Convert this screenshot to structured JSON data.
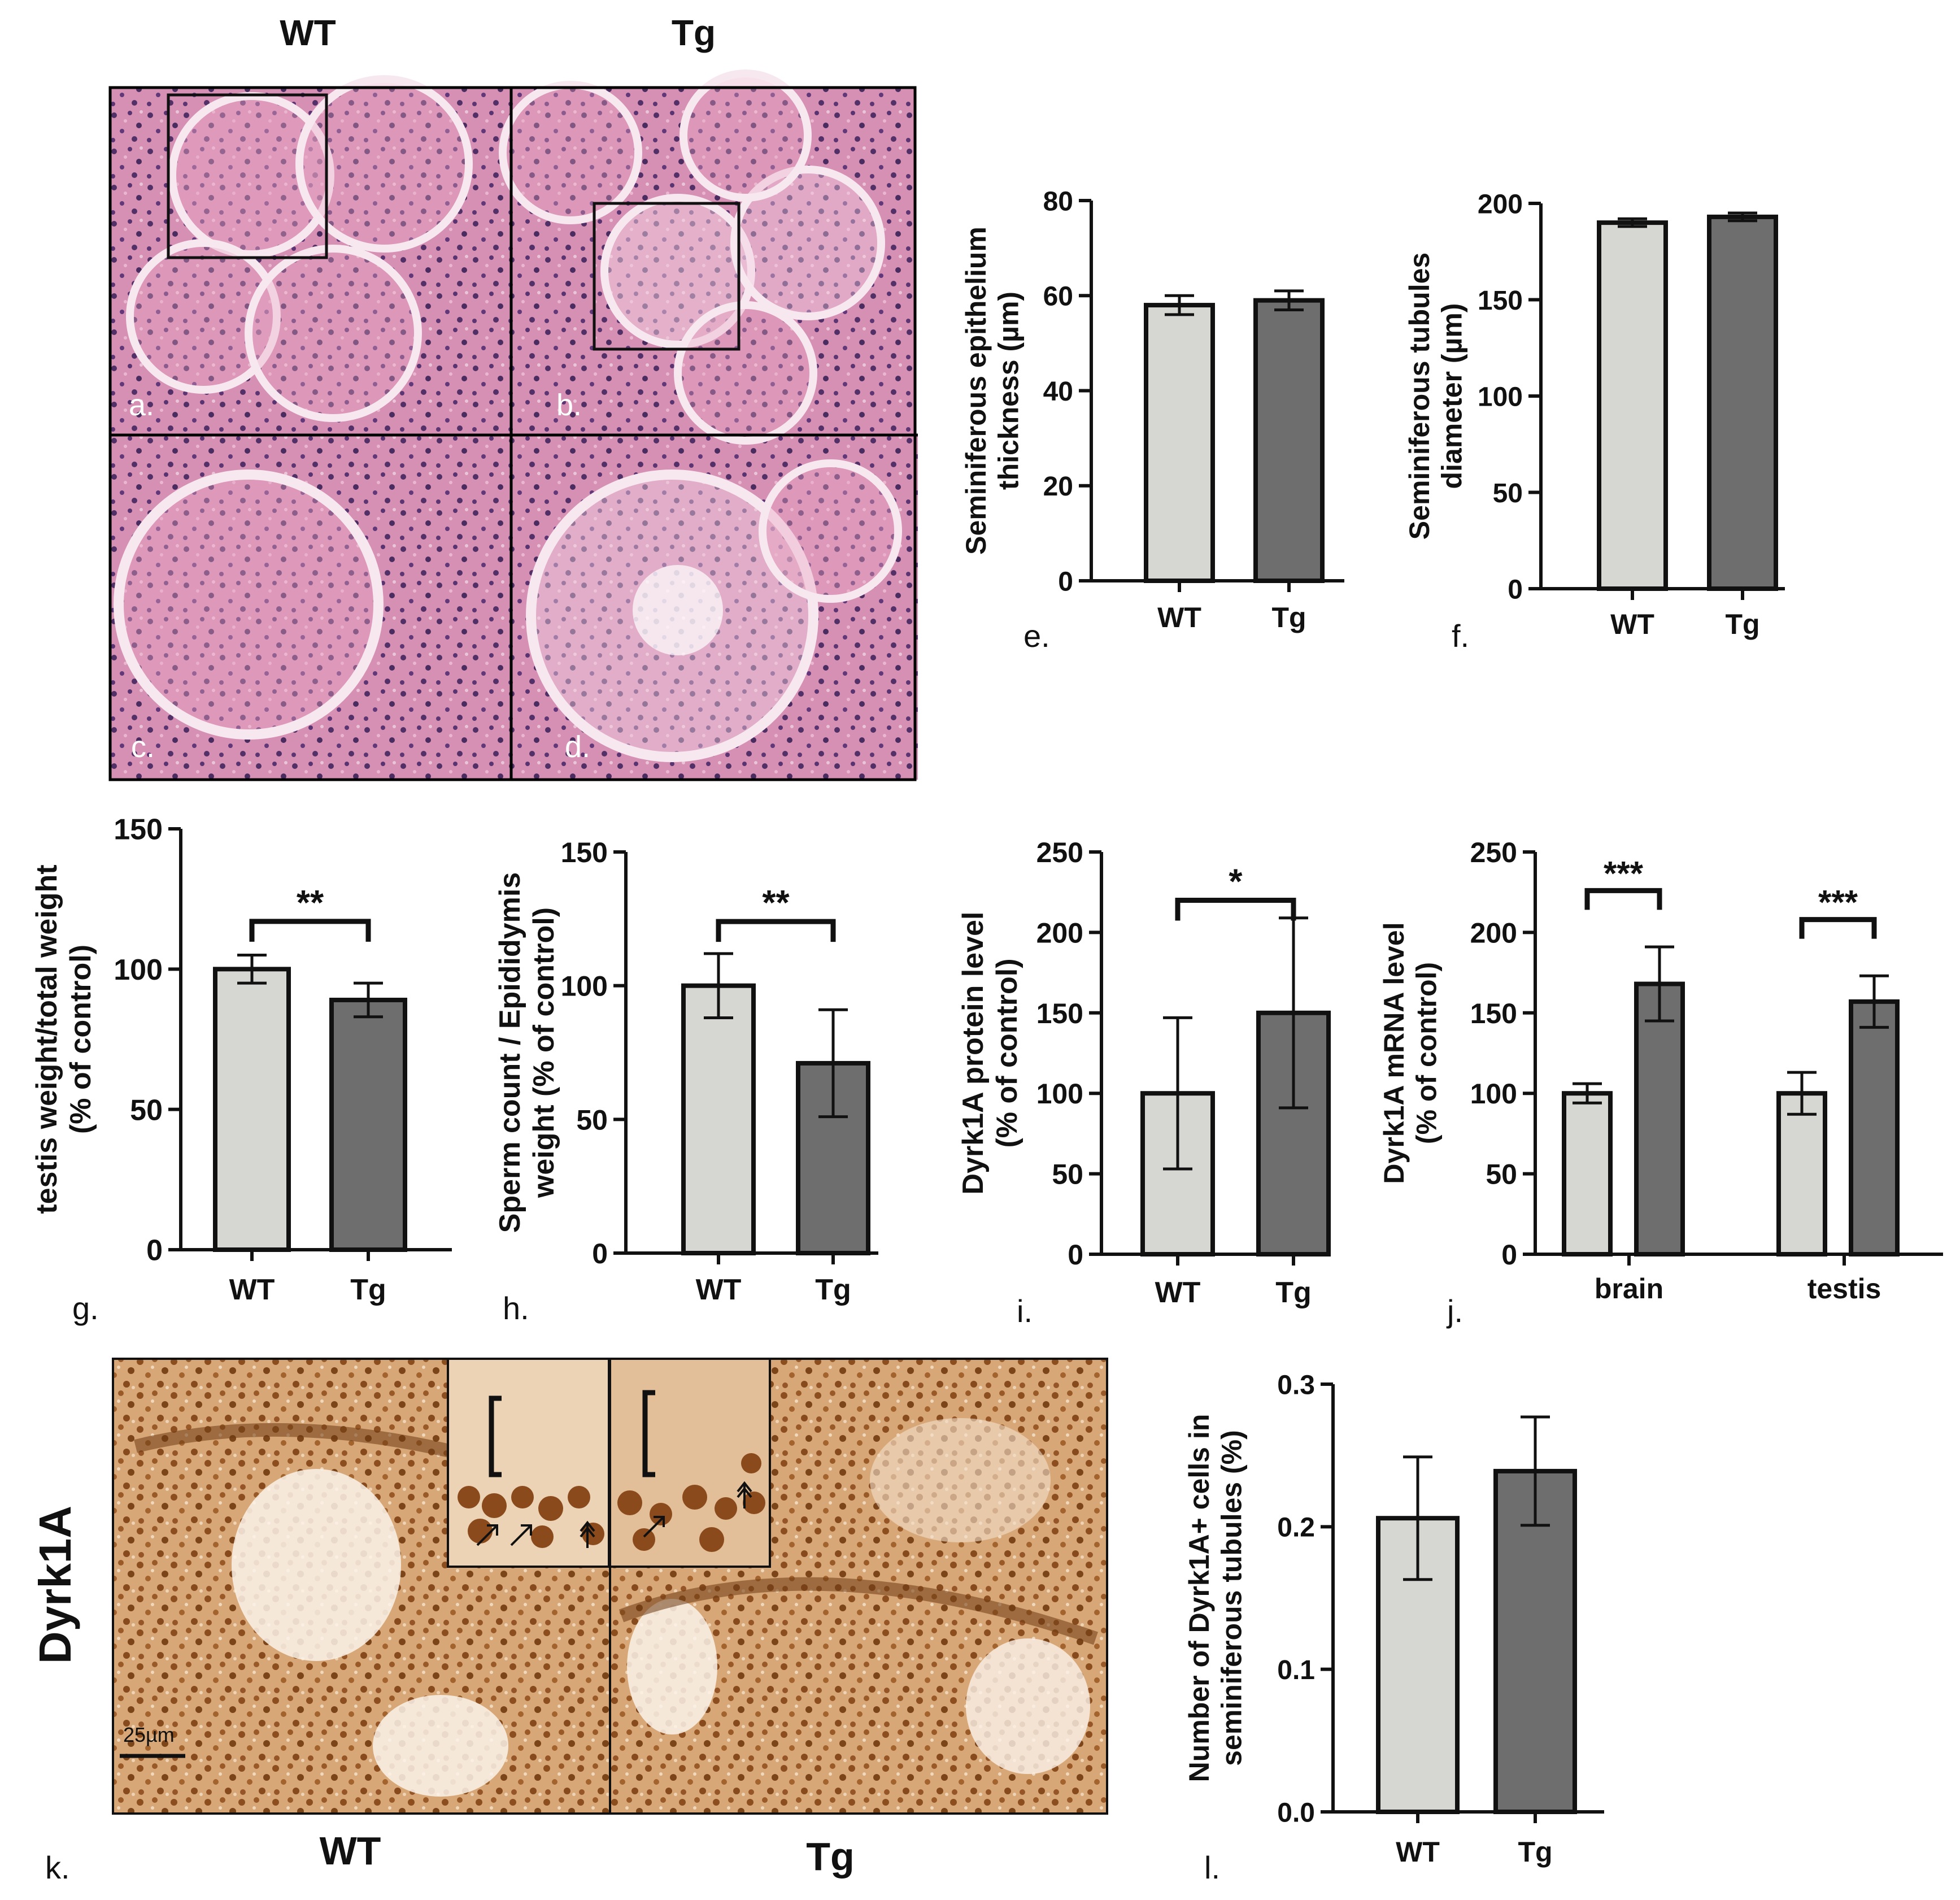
{
  "header": {
    "wt": "WT",
    "tg": "Tg"
  },
  "panel_letters": {
    "a": "a.",
    "b": "b.",
    "c": "c.",
    "d": "d.",
    "e": "e.",
    "f": "f.",
    "g": "g.",
    "h": "h.",
    "i": "i.",
    "j": "j.",
    "k": "k.",
    "l": "l."
  },
  "histology": {
    "stain_label": "Dyrk1A",
    "scale_bar": "25µm",
    "k_wt": "WT",
    "k_tg": "Tg",
    "he_color": "#d690b4",
    "ihc_color": "#c98c55"
  },
  "colors": {
    "wt_bar": "#d6d6d3",
    "tg_bar": "#6e6e6e",
    "axis": "#111111"
  },
  "chart_data": [
    {
      "id": "e",
      "type": "bar",
      "categories": [
        "WT",
        "Tg"
      ],
      "values": [
        58,
        59
      ],
      "errors": [
        2,
        2
      ],
      "ylabel": [
        "Seminiferous epithelium",
        "thickness (µm)"
      ],
      "ylim": [
        0,
        80
      ],
      "yticks": [
        "0",
        "20",
        "40",
        "60",
        "80"
      ],
      "significance": []
    },
    {
      "id": "f",
      "type": "bar",
      "categories": [
        "WT",
        "Tg"
      ],
      "values": [
        190,
        193
      ],
      "errors": [
        2,
        2
      ],
      "ylabel": [
        "Seminiferous tubules",
        "diameter (µm)"
      ],
      "ylim": [
        0,
        200
      ],
      "yticks": [
        "0",
        "50",
        "100",
        "150",
        "200"
      ],
      "significance": []
    },
    {
      "id": "g",
      "type": "bar",
      "categories": [
        "WT",
        "Tg"
      ],
      "values": [
        100,
        89
      ],
      "errors": [
        5,
        6
      ],
      "ylabel": [
        "testis weight/total weight",
        "(% of control)"
      ],
      "ylim": [
        0,
        150
      ],
      "yticks": [
        "0",
        "50",
        "100",
        "150"
      ],
      "significance": [
        {
          "pair": [
            0,
            1
          ],
          "label": "**"
        }
      ]
    },
    {
      "id": "h",
      "type": "bar",
      "categories": [
        "WT",
        "Tg"
      ],
      "values": [
        100,
        71
      ],
      "errors": [
        12,
        20
      ],
      "ylabel": [
        "Sperm count / Epididymis",
        "weight (% of control)"
      ],
      "ylim": [
        0,
        150
      ],
      "yticks": [
        "0",
        "50",
        "100",
        "150"
      ],
      "significance": [
        {
          "pair": [
            0,
            1
          ],
          "label": "**"
        }
      ]
    },
    {
      "id": "i",
      "type": "bar",
      "categories": [
        "WT",
        "Tg"
      ],
      "values": [
        100,
        150
      ],
      "errors": [
        47,
        59
      ],
      "ylabel": [
        "Dyrk1A protein level",
        "(% of control)"
      ],
      "ylim": [
        0,
        250
      ],
      "yticks": [
        "0",
        "50",
        "100",
        "150",
        "200",
        "250"
      ],
      "significance": [
        {
          "pair": [
            0,
            1
          ],
          "label": "*"
        }
      ]
    },
    {
      "id": "j",
      "type": "bar",
      "categories": [
        "brain",
        "testis"
      ],
      "series": [
        {
          "values": [
            100,
            100
          ],
          "errors": [
            6,
            13
          ]
        },
        {
          "values": [
            168,
            157
          ],
          "errors": [
            23,
            16
          ]
        }
      ],
      "ylabel": [
        "Dyrk1A mRNA level",
        "(% of control)"
      ],
      "ylim": [
        0,
        250
      ],
      "yticks": [
        "0",
        "50",
        "100",
        "150",
        "200",
        "250"
      ],
      "significance": [
        {
          "group": 0,
          "label": "***"
        },
        {
          "group": 1,
          "label": "***"
        }
      ]
    },
    {
      "id": "l",
      "type": "bar",
      "categories": [
        "WT",
        "Tg"
      ],
      "values": [
        0.206,
        0.239
      ],
      "errors": [
        0.043,
        0.038
      ],
      "ylabel": [
        "Number of Dyrk1A+ cells in",
        "seminiferous tubules (%)"
      ],
      "ylim": [
        0,
        0.3
      ],
      "yticks": [
        "0.0",
        "0.1",
        "0.2",
        "0.3"
      ],
      "significance": []
    }
  ]
}
